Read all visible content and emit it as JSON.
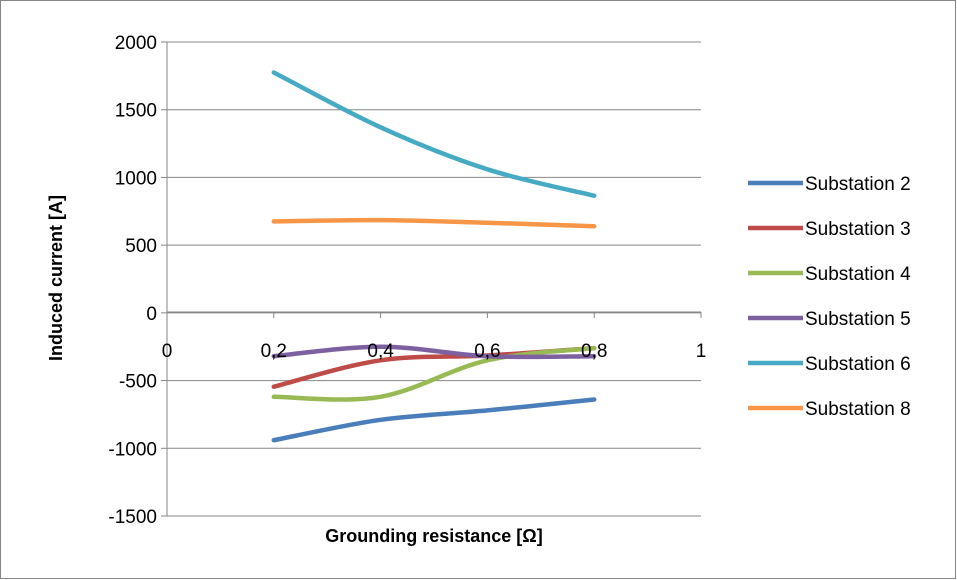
{
  "chart_data": {
    "type": "line",
    "title": "",
    "xlabel": "Grounding resistance [Ω]",
    "ylabel": "Induced current [A]",
    "xlim": [
      0,
      1
    ],
    "ylim": [
      -1500,
      2000
    ],
    "x_ticks": [
      "0",
      "0,2",
      "0,4",
      "0,6",
      "0,8",
      "1"
    ],
    "y_ticks": [
      "2000",
      "1500",
      "1000",
      "500",
      "0",
      "-500",
      "-1000",
      "-1500"
    ],
    "x_tick_values": [
      0,
      0.2,
      0.4,
      0.6,
      0.8,
      1
    ],
    "y_tick_values": [
      2000,
      1500,
      1000,
      500,
      0,
      -500,
      -1000,
      -1500
    ],
    "grid": "horizontal",
    "legend": "right",
    "x": [
      0.2,
      0.4,
      0.6,
      0.8
    ],
    "series": [
      {
        "name": "Substation 2",
        "color": "#4A7EBB",
        "values": [
          -940,
          -790,
          -720,
          -640
        ]
      },
      {
        "name": "Substation 3",
        "color": "#BE4B48",
        "values": [
          -545,
          -350,
          -315,
          -260
        ]
      },
      {
        "name": "Substation 4",
        "color": "#98B954",
        "values": [
          -620,
          -620,
          -350,
          -260
        ]
      },
      {
        "name": "Substation 5",
        "color": "#7D60A0",
        "values": [
          -320,
          -250,
          -320,
          -320
        ]
      },
      {
        "name": "Substation 6",
        "color": "#46AAC5",
        "values": [
          1775,
          1370,
          1060,
          865
        ]
      },
      {
        "name": "Substation 8",
        "color": "#F79646",
        "values": [
          675,
          685,
          665,
          640
        ]
      }
    ]
  }
}
